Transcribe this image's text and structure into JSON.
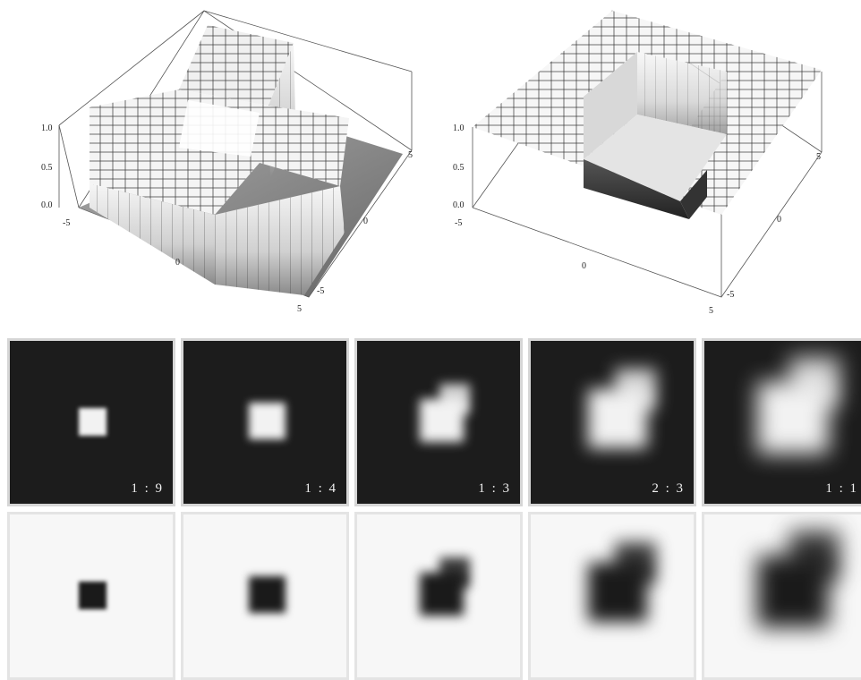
{
  "figure": {
    "left_plot": {
      "z_ticks": [
        "1.0",
        "0.5",
        "0.0"
      ],
      "x_ticks": [
        "-5",
        "0",
        "5"
      ],
      "y_ticks": [
        "5",
        "0",
        "-5"
      ]
    },
    "right_plot": {
      "z_ticks": [
        "1.0",
        "0.5",
        "0.0"
      ],
      "x_ticks": [
        "-5",
        "0",
        "5"
      ],
      "y_ticks": [
        "5",
        "0",
        "-5"
      ]
    }
  },
  "panels": {
    "ratios": [
      "1 : 9",
      "1 : 4",
      "1 : 3",
      "2 : 3",
      "1 : 1"
    ],
    "blur_levels": [
      0.1,
      0.25,
      0.35,
      0.6,
      0.8
    ]
  }
}
